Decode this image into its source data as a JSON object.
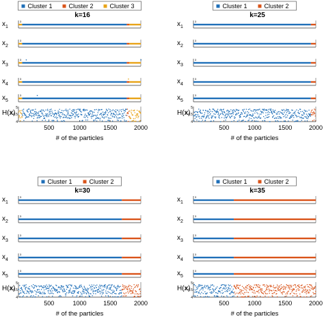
{
  "colors": {
    "cluster_1": "#1f6fb8",
    "cluster_2": "#d95319",
    "cluster_3": "#e8a317"
  },
  "chart_data": [
    {
      "type": "scatter",
      "title": "k=16",
      "xlabel": "# of the particles",
      "xlim": [
        0,
        2000
      ],
      "x_ticks": [
        "500",
        "1000",
        "1500",
        "2000"
      ],
      "legend": {
        "placement": "top",
        "entries": [
          "Cluster 1",
          "Cluster 2",
          "Cluster 3"
        ]
      },
      "row_labels": [
        "x1",
        "x2",
        "x3",
        "x4",
        "x5",
        "H(x)"
      ],
      "h_ticks": [
        "4",
        "4.5",
        "5"
      ],
      "small_ticks": [
        "3",
        "4"
      ],
      "series": [
        {
          "name": "Cluster 1",
          "color_key": "cluster_1",
          "x": [
            60,
            1770
          ]
        },
        {
          "name": "Cluster 2",
          "color_key": "cluster_2",
          "x": [
            1770,
            1810
          ]
        },
        {
          "name": "Cluster 3",
          "color_key": "cluster_3",
          "x": [
            0,
            60,
            1810,
            2000
          ]
        }
      ]
    },
    {
      "type": "scatter",
      "title": "k=25",
      "xlabel": "# of the particles",
      "xlim": [
        0,
        2000
      ],
      "x_ticks": [
        "500",
        "1000",
        "1500",
        "2000"
      ],
      "legend": {
        "placement": "top",
        "entries": [
          "Cluster 1",
          "Cluster 2"
        ]
      },
      "row_labels": [
        "x1",
        "x2",
        "x3",
        "x4",
        "x5",
        "H(x)"
      ],
      "h_ticks": [
        "4",
        "4.5",
        "5"
      ],
      "small_ticks": [
        "3",
        "4"
      ],
      "series": [
        {
          "name": "Cluster 1",
          "color_key": "cluster_1",
          "x": [
            0,
            1920
          ]
        },
        {
          "name": "Cluster 2",
          "color_key": "cluster_2",
          "x": [
            1920,
            2000
          ]
        }
      ]
    },
    {
      "type": "scatter",
      "title": "k=30",
      "xlabel": "# of the particles",
      "xlim": [
        0,
        2000
      ],
      "x_ticks": [
        "500",
        "1000",
        "1500",
        "2000"
      ],
      "legend": {
        "placement": "top",
        "entries": [
          "Cluster 1",
          "Cluster 2"
        ]
      },
      "row_labels": [
        "x1",
        "x2",
        "x3",
        "x4",
        "x5",
        "H(x)"
      ],
      "h_ticks": [
        "4",
        "4.5",
        "5"
      ],
      "small_ticks": [
        "3",
        "4"
      ],
      "series": [
        {
          "name": "Cluster 1",
          "color_key": "cluster_1",
          "x": [
            0,
            1690
          ]
        },
        {
          "name": "Cluster 2",
          "color_key": "cluster_2",
          "x": [
            1690,
            2000
          ]
        }
      ]
    },
    {
      "type": "scatter",
      "title": "k=35",
      "xlabel": "# of the particles",
      "xlim": [
        0,
        2000
      ],
      "x_ticks": [
        "500",
        "1000",
        "1500",
        "2000"
      ],
      "legend": {
        "placement": "top",
        "entries": [
          "Cluster 1",
          "Cluster 2"
        ]
      },
      "row_labels": [
        "x1",
        "x2",
        "x3",
        "x4",
        "x5",
        "H(x)"
      ],
      "h_ticks": [
        "4",
        "4.5",
        "5"
      ],
      "small_ticks": [
        "3",
        "4"
      ],
      "series": [
        {
          "name": "Cluster 1",
          "color_key": "cluster_1",
          "x": [
            0,
            660
          ]
        },
        {
          "name": "Cluster 2",
          "color_key": "cluster_2",
          "x": [
            660,
            2000
          ]
        }
      ]
    }
  ]
}
